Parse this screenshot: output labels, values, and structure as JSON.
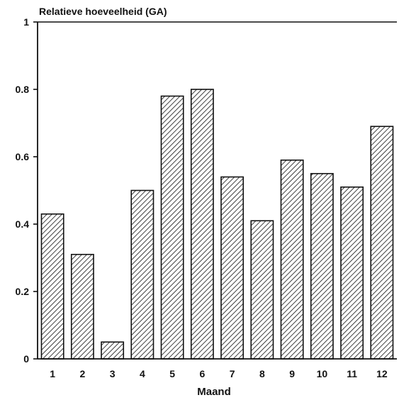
{
  "chart_data": {
    "type": "bar",
    "title": "Relatieve hoeveelheid (GA)",
    "xlabel": "Maand",
    "ylabel": "",
    "categories": [
      "1",
      "2",
      "3",
      "4",
      "5",
      "6",
      "7",
      "8",
      "9",
      "10",
      "11",
      "12"
    ],
    "values": [
      0.43,
      0.31,
      0.05,
      0.5,
      0.78,
      0.8,
      0.54,
      0.41,
      0.59,
      0.55,
      0.51,
      0.69
    ],
    "ylim": [
      0,
      1
    ],
    "yticks": [
      "0",
      "0.2",
      "0.4",
      "0.6",
      "0.8",
      "1"
    ],
    "grid": false,
    "bar_fill": "diagonal-hatch",
    "colors": {
      "ink": "#111111",
      "background": "#ffffff"
    }
  }
}
